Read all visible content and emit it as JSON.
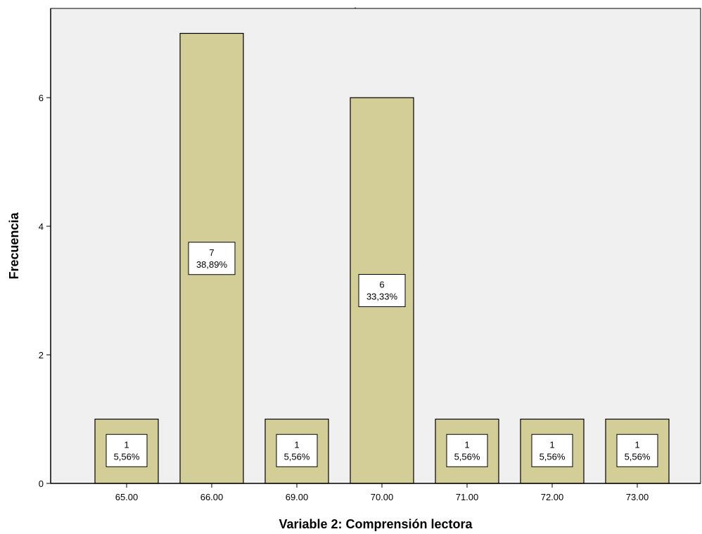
{
  "chart_data": {
    "type": "bar",
    "title": ".",
    "xlabel": "Variable 2: Comprensión lectora",
    "ylabel": "Frecuencia",
    "categories": [
      "65.00",
      "66.00",
      "69.00",
      "70.00",
      "71.00",
      "72.00",
      "73.00"
    ],
    "values": [
      1,
      7,
      1,
      6,
      1,
      1,
      1
    ],
    "percent_labels": [
      "5,56%",
      "38,89%",
      "5,56%",
      "33,33%",
      "5,56%",
      "5,56%",
      "5,56%"
    ],
    "ylim": [
      0,
      7.2
    ],
    "yticks": [
      0,
      2,
      4,
      6
    ],
    "grid": false,
    "legend": "none",
    "colors": {
      "bar_fill": "#d3ce97",
      "bar_stroke": "#000000",
      "plot_background": "#f0f0f0",
      "label_box_fill": "#ffffff"
    }
  }
}
